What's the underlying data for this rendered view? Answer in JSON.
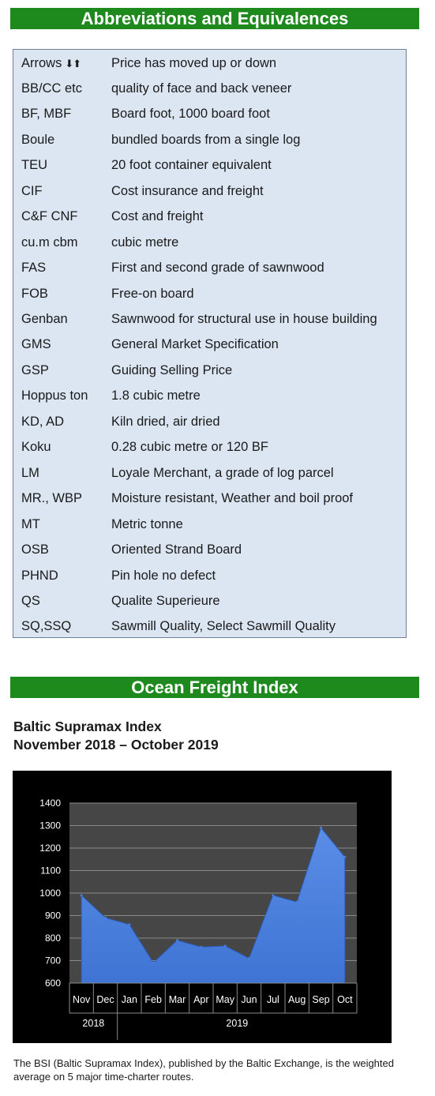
{
  "abbreviations": {
    "title": "Abbreviations and Equivalences",
    "arrows_glyph": "⬇⬆",
    "rows": [
      {
        "term": "Arrows",
        "definition": "Price has moved up or down"
      },
      {
        "term": "BB/CC etc",
        "definition": "quality of face and back veneer"
      },
      {
        "term": "BF, MBF",
        "definition": "Board foot, 1000 board foot"
      },
      {
        "term": "Boule",
        "definition": "bundled boards from a single log"
      },
      {
        "term": "TEU",
        "definition": "20 foot container equivalent"
      },
      {
        "term": "CIF",
        "definition": "Cost insurance and freight"
      },
      {
        "term": "C&F CNF",
        "definition": "Cost and freight"
      },
      {
        "term": "cu.m cbm",
        "definition": "cubic metre"
      },
      {
        "term": "FAS",
        "definition": "First and second grade of sawnwood"
      },
      {
        "term": "FOB",
        "definition": "Free-on board"
      },
      {
        "term": "Genban",
        "definition": "Sawnwood for structural use in house building"
      },
      {
        "term": "GMS",
        "definition": "General Market Specification"
      },
      {
        "term": "GSP",
        "definition": "Guiding Selling Price"
      },
      {
        "term": "Hoppus ton",
        "definition": "1.8 cubic metre"
      },
      {
        "term": "KD, AD",
        "definition": "Kiln dried, air dried"
      },
      {
        "term": "Koku",
        "definition": "0.28 cubic metre or 120 BF"
      },
      {
        "term": "LM",
        "definition": "Loyale Merchant, a grade of log parcel"
      },
      {
        "term": "MR., WBP",
        "definition": "Moisture resistant, Weather and boil proof"
      },
      {
        "term": "MT",
        "definition": "Metric tonne"
      },
      {
        "term": "OSB",
        "definition": "Oriented Strand Board"
      },
      {
        "term": "PHND",
        "definition": "Pin hole no defect"
      },
      {
        "term": "QS",
        "definition": "Qualite Superieure"
      },
      {
        "term": "SQ,SSQ",
        "definition": "Sawmill Quality, Select Sawmill Quality"
      }
    ]
  },
  "freight": {
    "section_title": "Ocean Freight Index",
    "caption": "The BSI (Baltic Supramax Index), published by the Baltic Exchange, is the weighted average on 5 major time-charter routes."
  },
  "colors": {
    "banner": "#1e8a1e",
    "table_bg": "#dce6f2",
    "area_fill": "#3f74d4",
    "plot_bg": "#464646"
  },
  "chart_data": {
    "type": "area",
    "title": "Baltic Supramax Index",
    "subtitle": "November 2018 – October 2019",
    "categories": [
      "Nov",
      "Dec",
      "Jan",
      "Feb",
      "Mar",
      "Apr",
      "May",
      "Jun",
      "Jul",
      "Aug",
      "Sep",
      "Oct"
    ],
    "year_groups": [
      {
        "label": "2018",
        "count": 2
      },
      {
        "label": "2019",
        "count": 10
      }
    ],
    "values": [
      990,
      890,
      860,
      690,
      790,
      760,
      765,
      710,
      990,
      960,
      1290,
      1160
    ],
    "ylim": [
      600,
      1400
    ],
    "yticks": [
      600,
      700,
      800,
      900,
      1000,
      1100,
      1200,
      1300,
      1400
    ],
    "grid": true,
    "legend": "none"
  }
}
